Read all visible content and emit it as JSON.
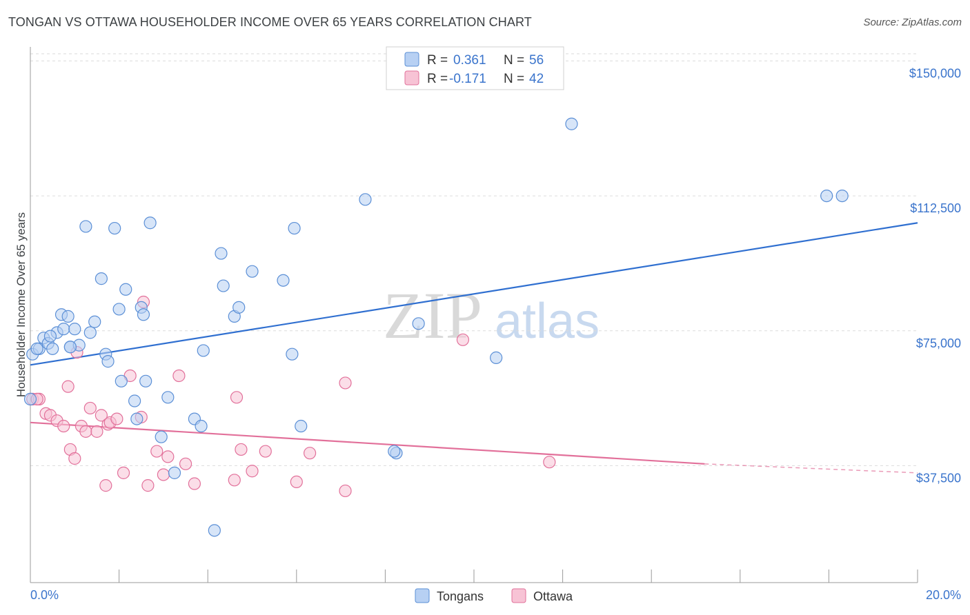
{
  "title": "TONGAN VS OTTAWA HOUSEHOLDER INCOME OVER 65 YEARS CORRELATION CHART",
  "source": "Source: ZipAtlas.com",
  "watermark": {
    "zip": "ZIP",
    "atlas": "atlas"
  },
  "legend": {
    "series1": {
      "r_label": "R =",
      "r_value": "0.361",
      "n_label": "N =",
      "n_value": "56"
    },
    "series2": {
      "r_label": "R =",
      "r_value": "-0.171",
      "n_label": "N =",
      "n_value": "42"
    }
  },
  "bottom_legend": [
    "Tongans",
    "Ottawa"
  ],
  "colors": {
    "blue": "#5b8fd6",
    "blue_fill": "#b7d0f3",
    "pink": "#e2709a",
    "pink_fill": "#f7c3d5",
    "axis_text": "#3a74cc"
  },
  "chart_data": {
    "type": "scatter",
    "ylabel": "Householder Income Over 65 years",
    "xlim": [
      0,
      20
    ],
    "ylim": [
      5000,
      152000
    ],
    "x_tick_labels": [
      "0.0%",
      "20.0%"
    ],
    "y_ticks": [
      {
        "value": 37500,
        "label": "$37,500"
      },
      {
        "value": 75000,
        "label": "$75,000"
      },
      {
        "value": 112500,
        "label": "$112,500"
      },
      {
        "value": 150000,
        "label": "$150,000"
      }
    ],
    "grid": true,
    "series": [
      {
        "name": "Tongans",
        "color": "#5b8fd6",
        "points": [
          [
            0.05,
            68500
          ],
          [
            0.2,
            70000
          ],
          [
            0.3,
            73000
          ],
          [
            0.4,
            71500
          ],
          [
            0.5,
            70000
          ],
          [
            0.6,
            74500
          ],
          [
            0.7,
            79500
          ],
          [
            0.75,
            75500
          ],
          [
            0.85,
            79000
          ],
          [
            0.9,
            70500
          ],
          [
            1.0,
            75500
          ],
          [
            1.1,
            71000
          ],
          [
            1.25,
            104000
          ],
          [
            1.35,
            74500
          ],
          [
            1.45,
            77500
          ],
          [
            1.6,
            89500
          ],
          [
            1.7,
            68500
          ],
          [
            1.75,
            66500
          ],
          [
            1.9,
            103500
          ],
          [
            2.0,
            81000
          ],
          [
            2.05,
            61000
          ],
          [
            2.15,
            86500
          ],
          [
            2.35,
            55500
          ],
          [
            2.4,
            50500
          ],
          [
            2.5,
            81500
          ],
          [
            2.55,
            79500
          ],
          [
            2.6,
            61000
          ],
          [
            2.7,
            105000
          ],
          [
            2.95,
            45500
          ],
          [
            3.1,
            56500
          ],
          [
            3.25,
            35500
          ],
          [
            3.7,
            50500
          ],
          [
            3.85,
            48500
          ],
          [
            3.9,
            69500
          ],
          [
            4.15,
            19500
          ],
          [
            4.3,
            96500
          ],
          [
            4.35,
            87500
          ],
          [
            4.6,
            79000
          ],
          [
            4.7,
            81500
          ],
          [
            5.0,
            91500
          ],
          [
            5.7,
            89000
          ],
          [
            5.9,
            68500
          ],
          [
            5.95,
            103500
          ],
          [
            6.1,
            48500
          ],
          [
            7.55,
            111500
          ],
          [
            8.25,
            41000
          ],
          [
            8.2,
            41500
          ],
          [
            8.75,
            77000
          ],
          [
            10.5,
            67500
          ],
          [
            12.2,
            132500
          ],
          [
            17.95,
            112500
          ],
          [
            18.3,
            112500
          ],
          [
            0.15,
            70000
          ],
          [
            0.9,
            70500
          ],
          [
            0.45,
            73500
          ],
          [
            0.0,
            56000
          ]
        ],
        "trend": {
          "x": [
            0,
            20
          ],
          "y": [
            65500,
            105000
          ]
        }
      },
      {
        "name": "Ottawa",
        "color": "#e2709a",
        "points": [
          [
            0.05,
            56000
          ],
          [
            0.2,
            56000
          ],
          [
            0.35,
            52000
          ],
          [
            0.45,
            51500
          ],
          [
            0.6,
            50000
          ],
          [
            0.75,
            48500
          ],
          [
            0.85,
            59500
          ],
          [
            0.9,
            42000
          ],
          [
            1.0,
            39500
          ],
          [
            1.05,
            69000
          ],
          [
            1.15,
            48500
          ],
          [
            1.25,
            47000
          ],
          [
            1.35,
            53500
          ],
          [
            1.5,
            47000
          ],
          [
            1.6,
            51500
          ],
          [
            1.7,
            32000
          ],
          [
            1.75,
            49000
          ],
          [
            1.8,
            49500
          ],
          [
            1.95,
            50500
          ],
          [
            2.1,
            35500
          ],
          [
            2.25,
            62500
          ],
          [
            2.5,
            51000
          ],
          [
            2.55,
            83000
          ],
          [
            2.65,
            32000
          ],
          [
            2.85,
            41500
          ],
          [
            3.0,
            35000
          ],
          [
            3.1,
            40000
          ],
          [
            3.35,
            62500
          ],
          [
            3.5,
            38000
          ],
          [
            3.7,
            32500
          ],
          [
            4.6,
            33500
          ],
          [
            4.65,
            56500
          ],
          [
            4.75,
            42000
          ],
          [
            5.0,
            36000
          ],
          [
            5.3,
            41500
          ],
          [
            6.0,
            33000
          ],
          [
            6.3,
            41000
          ],
          [
            7.1,
            60500
          ],
          [
            7.1,
            30500
          ],
          [
            9.75,
            72500
          ],
          [
            11.7,
            38500
          ],
          [
            0.15,
            56000
          ]
        ],
        "trend": {
          "x": [
            0,
            15.2
          ],
          "y": [
            49500,
            38000
          ]
        },
        "trend_dashed": {
          "x": [
            15.2,
            20
          ],
          "y": [
            38000,
            35500
          ]
        }
      }
    ]
  }
}
